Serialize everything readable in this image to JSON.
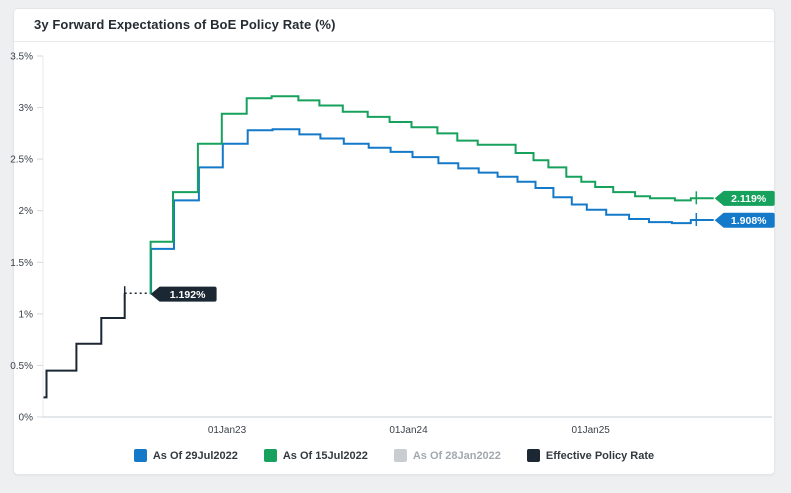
{
  "card": {
    "title": "3y Forward Expectations of BoE Policy Rate (%)"
  },
  "chart_data": {
    "type": "line",
    "subtype": "step",
    "title": "3y Forward Expectations of BoE Policy Rate (%)",
    "xlabel": "",
    "ylabel": "",
    "y_unit": "%",
    "ylim": [
      0,
      3.5
    ],
    "xlim": [
      "2021-12-28",
      "2025-12-31"
    ],
    "grid": "off",
    "legend_position": "bottom",
    "y_ticks": [
      "3.5%",
      "3%",
      "2.5%",
      "2%",
      "1.5%",
      "1%",
      "0.5%",
      "0%"
    ],
    "x_ticks": [
      "01Jan23",
      "01Jan24",
      "01Jan25"
    ],
    "series": [
      {
        "name": "As Of 29Jul2022",
        "color": "#1379c8",
        "visible": true,
        "end": "2025-09-05",
        "end_value": 1.908,
        "end_label": "1.908%",
        "tick_date": "2025-08-01",
        "tick_value": 1.91,
        "points": [
          [
            "2022-08-02",
            1.19
          ],
          [
            "2022-08-02",
            1.63
          ],
          [
            "2022-09-17",
            2.1
          ],
          [
            "2022-11-06",
            2.42
          ],
          [
            "2022-12-24",
            2.65
          ],
          [
            "2023-02-12",
            2.78
          ],
          [
            "2023-04-03",
            2.79
          ],
          [
            "2023-05-27",
            2.74
          ],
          [
            "2023-07-08",
            2.7
          ],
          [
            "2023-08-24",
            2.65
          ],
          [
            "2023-10-13",
            2.61
          ],
          [
            "2023-11-26",
            2.57
          ],
          [
            "2024-01-09",
            2.52
          ],
          [
            "2024-03-01",
            2.46
          ],
          [
            "2024-04-10",
            2.41
          ],
          [
            "2024-05-21",
            2.37
          ],
          [
            "2024-06-28",
            2.33
          ],
          [
            "2024-08-07",
            2.28
          ],
          [
            "2024-09-12",
            2.22
          ],
          [
            "2024-10-18",
            2.13
          ],
          [
            "2024-11-24",
            2.06
          ],
          [
            "2024-12-24",
            2.01
          ],
          [
            "2025-02-01",
            1.96
          ],
          [
            "2025-03-19",
            1.92
          ],
          [
            "2025-04-28",
            1.89
          ],
          [
            "2025-06-13",
            1.88
          ],
          [
            "2025-07-21",
            1.91
          ]
        ]
      },
      {
        "name": "As Of 15Jul2022",
        "color": "#16a15c",
        "visible": true,
        "end": "2025-09-05",
        "end_value": 2.119,
        "end_label": "2.119%",
        "tick_date": "2025-08-01",
        "tick_value": 2.12,
        "points": [
          [
            "2022-08-01",
            1.19
          ],
          [
            "2022-08-01",
            1.7
          ],
          [
            "2022-09-15",
            2.18
          ],
          [
            "2022-11-04",
            2.65
          ],
          [
            "2022-12-22",
            2.94
          ],
          [
            "2023-02-10",
            3.09
          ],
          [
            "2023-04-01",
            3.11
          ],
          [
            "2023-05-25",
            3.07
          ],
          [
            "2023-07-06",
            3.02
          ],
          [
            "2023-08-22",
            2.96
          ],
          [
            "2023-10-11",
            2.91
          ],
          [
            "2023-11-24",
            2.86
          ],
          [
            "2024-01-07",
            2.81
          ],
          [
            "2024-02-28",
            2.75
          ],
          [
            "2024-04-08",
            2.68
          ],
          [
            "2024-05-19",
            2.64
          ],
          [
            "2024-08-03",
            2.56
          ],
          [
            "2024-09-08",
            2.49
          ],
          [
            "2024-10-08",
            2.42
          ],
          [
            "2024-11-13",
            2.33
          ],
          [
            "2024-12-13",
            2.28
          ],
          [
            "2025-01-10",
            2.23
          ],
          [
            "2025-02-15",
            2.18
          ],
          [
            "2025-03-31",
            2.14
          ],
          [
            "2025-04-30",
            2.12
          ],
          [
            "2025-06-19",
            2.1
          ],
          [
            "2025-07-21",
            2.12
          ]
        ]
      },
      {
        "name": "As Of 28Jan2022",
        "color": "#c9cdd1",
        "visible": false,
        "points": []
      },
      {
        "name": "Effective Policy Rate",
        "color": "#1b2733",
        "visible": true,
        "end": "2022-07-30",
        "end_value": 1.192,
        "end_label": "1.192%",
        "dash_to_end": true,
        "tick_date": "2022-06-10",
        "tick_value": 1.2,
        "points": [
          [
            "2021-12-29",
            0.19
          ],
          [
            "2022-01-04",
            0.45
          ],
          [
            "2022-03-05",
            0.71
          ],
          [
            "2022-04-24",
            0.96
          ],
          [
            "2022-06-10",
            1.2
          ]
        ]
      }
    ]
  }
}
